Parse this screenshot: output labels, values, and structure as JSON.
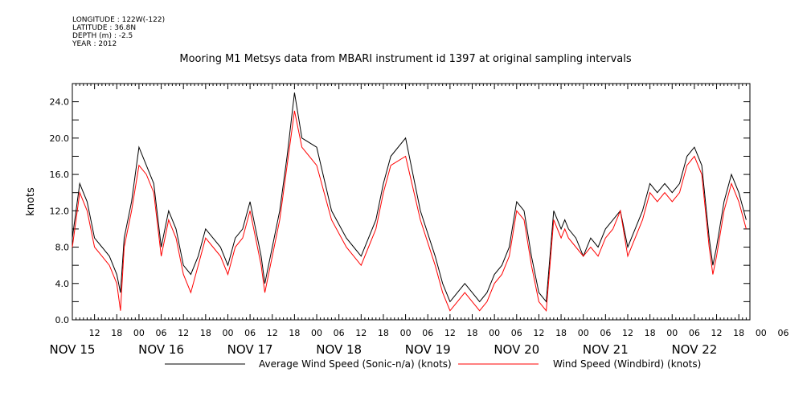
{
  "meta": {
    "longitude": "LONGITUDE : 122W(-122)",
    "latitude": "LATITUDE : 36.8N",
    "depth": "DEPTH (m) : -2.5",
    "year": "YEAR : 2012"
  },
  "chart_data": {
    "type": "line",
    "title": "Mooring M1 Metsys data from MBARI instrument id 1397 at original sampling intervals",
    "xlabel": "",
    "ylabel": "knots",
    "ylim": [
      0,
      26
    ],
    "yticks": [
      "0.0",
      "4.0",
      "8.0",
      "12.0",
      "16.0",
      "20.0",
      "24.0"
    ],
    "xlim_hours": [
      6,
      189
    ],
    "hour_tick_labels": [
      "12",
      "18",
      "00",
      "06",
      "12",
      "18",
      "00",
      "06",
      "12",
      "18",
      "00",
      "06",
      "12",
      "18",
      "00",
      "06",
      "12",
      "18",
      "00",
      "06",
      "12",
      "18",
      "00",
      "06",
      "12",
      "18",
      "00",
      "06",
      "12",
      "18",
      "00",
      "06"
    ],
    "day_labels": [
      "NOV 15",
      "NOV 16",
      "NOV 17",
      "NOV 18",
      "NOV 19",
      "NOV 20",
      "NOV 21",
      "NOV 22"
    ],
    "grid": false,
    "legend_position": "bottom",
    "x_unit": "hours since NOV 15 00:00",
    "series": [
      {
        "name": "Average Wind Speed (Sonic-n/a) (knots)",
        "color": "#000000",
        "x": [
          6,
          8,
          10,
          12,
          14,
          16,
          18,
          19,
          20,
          22,
          24,
          26,
          28,
          30,
          32,
          34,
          36,
          38,
          40,
          42,
          44,
          46,
          48,
          50,
          52,
          54,
          56,
          57,
          58,
          59,
          60,
          62,
          64,
          66,
          68,
          72,
          76,
          80,
          82,
          84,
          86,
          88,
          90,
          92,
          96,
          100,
          104,
          106,
          108,
          110,
          112,
          114,
          116,
          118,
          120,
          122,
          124,
          126,
          128,
          130,
          132,
          134,
          136,
          137,
          138,
          139,
          140,
          142,
          144,
          146,
          148,
          150,
          152,
          154,
          156,
          158,
          160,
          162,
          164,
          166,
          168,
          170,
          172,
          174,
          176,
          178,
          179,
          180,
          182,
          184,
          186,
          188
        ],
        "y": [
          9,
          15,
          13,
          9,
          8,
          7,
          5,
          3,
          9,
          13,
          19,
          17,
          15,
          8,
          12,
          10,
          6,
          5,
          7,
          10,
          9,
          8,
          6,
          9,
          10,
          13,
          9,
          7,
          4,
          6,
          8,
          12,
          18,
          25,
          20,
          19,
          12,
          9,
          8,
          7,
          9,
          11,
          15,
          18,
          20,
          12,
          7,
          4,
          2,
          3,
          4,
          3,
          2,
          3,
          5,
          6,
          8,
          13,
          12,
          7,
          3,
          2,
          12,
          11,
          10,
          11,
          10,
          9,
          7,
          9,
          8,
          10,
          11,
          12,
          8,
          10,
          12,
          15,
          14,
          15,
          14,
          15,
          18,
          19,
          17,
          9,
          6,
          8,
          13,
          16,
          14,
          11
        ]
      },
      {
        "name": "Wind Speed (Windbird) (knots)",
        "color": "#ff0000",
        "x": [
          6,
          8,
          10,
          12,
          14,
          16,
          18,
          19,
          20,
          22,
          24,
          26,
          28,
          30,
          32,
          34,
          36,
          38,
          40,
          42,
          44,
          46,
          48,
          50,
          52,
          54,
          56,
          57,
          58,
          59,
          60,
          62,
          64,
          66,
          68,
          72,
          76,
          80,
          82,
          84,
          86,
          88,
          90,
          92,
          96,
          100,
          104,
          106,
          108,
          110,
          112,
          114,
          116,
          118,
          120,
          122,
          124,
          126,
          128,
          130,
          132,
          134,
          136,
          137,
          138,
          139,
          140,
          142,
          144,
          146,
          148,
          150,
          152,
          154,
          156,
          158,
          160,
          162,
          164,
          166,
          168,
          170,
          172,
          174,
          176,
          178,
          179,
          180,
          182,
          184,
          186,
          188
        ],
        "y": [
          8,
          14,
          12,
          8,
          7,
          6,
          4,
          1,
          8,
          12,
          17,
          16,
          14,
          7,
          11,
          9,
          5,
          3,
          6,
          9,
          8,
          7,
          5,
          8,
          9,
          12,
          8,
          6,
          3,
          5,
          7,
          11,
          17,
          23,
          19,
          17,
          11,
          8,
          7,
          6,
          8,
          10,
          14,
          17,
          18,
          11,
          6,
          3,
          1,
          2,
          3,
          2,
          1,
          2,
          4,
          5,
          7,
          12,
          11,
          6,
          2,
          1,
          11,
          10,
          9,
          10,
          9,
          8,
          7,
          8,
          7,
          9,
          10,
          12,
          7,
          9,
          11,
          14,
          13,
          14,
          13,
          14,
          17,
          18,
          16,
          8,
          5,
          7,
          12,
          15,
          13,
          10
        ]
      }
    ]
  }
}
